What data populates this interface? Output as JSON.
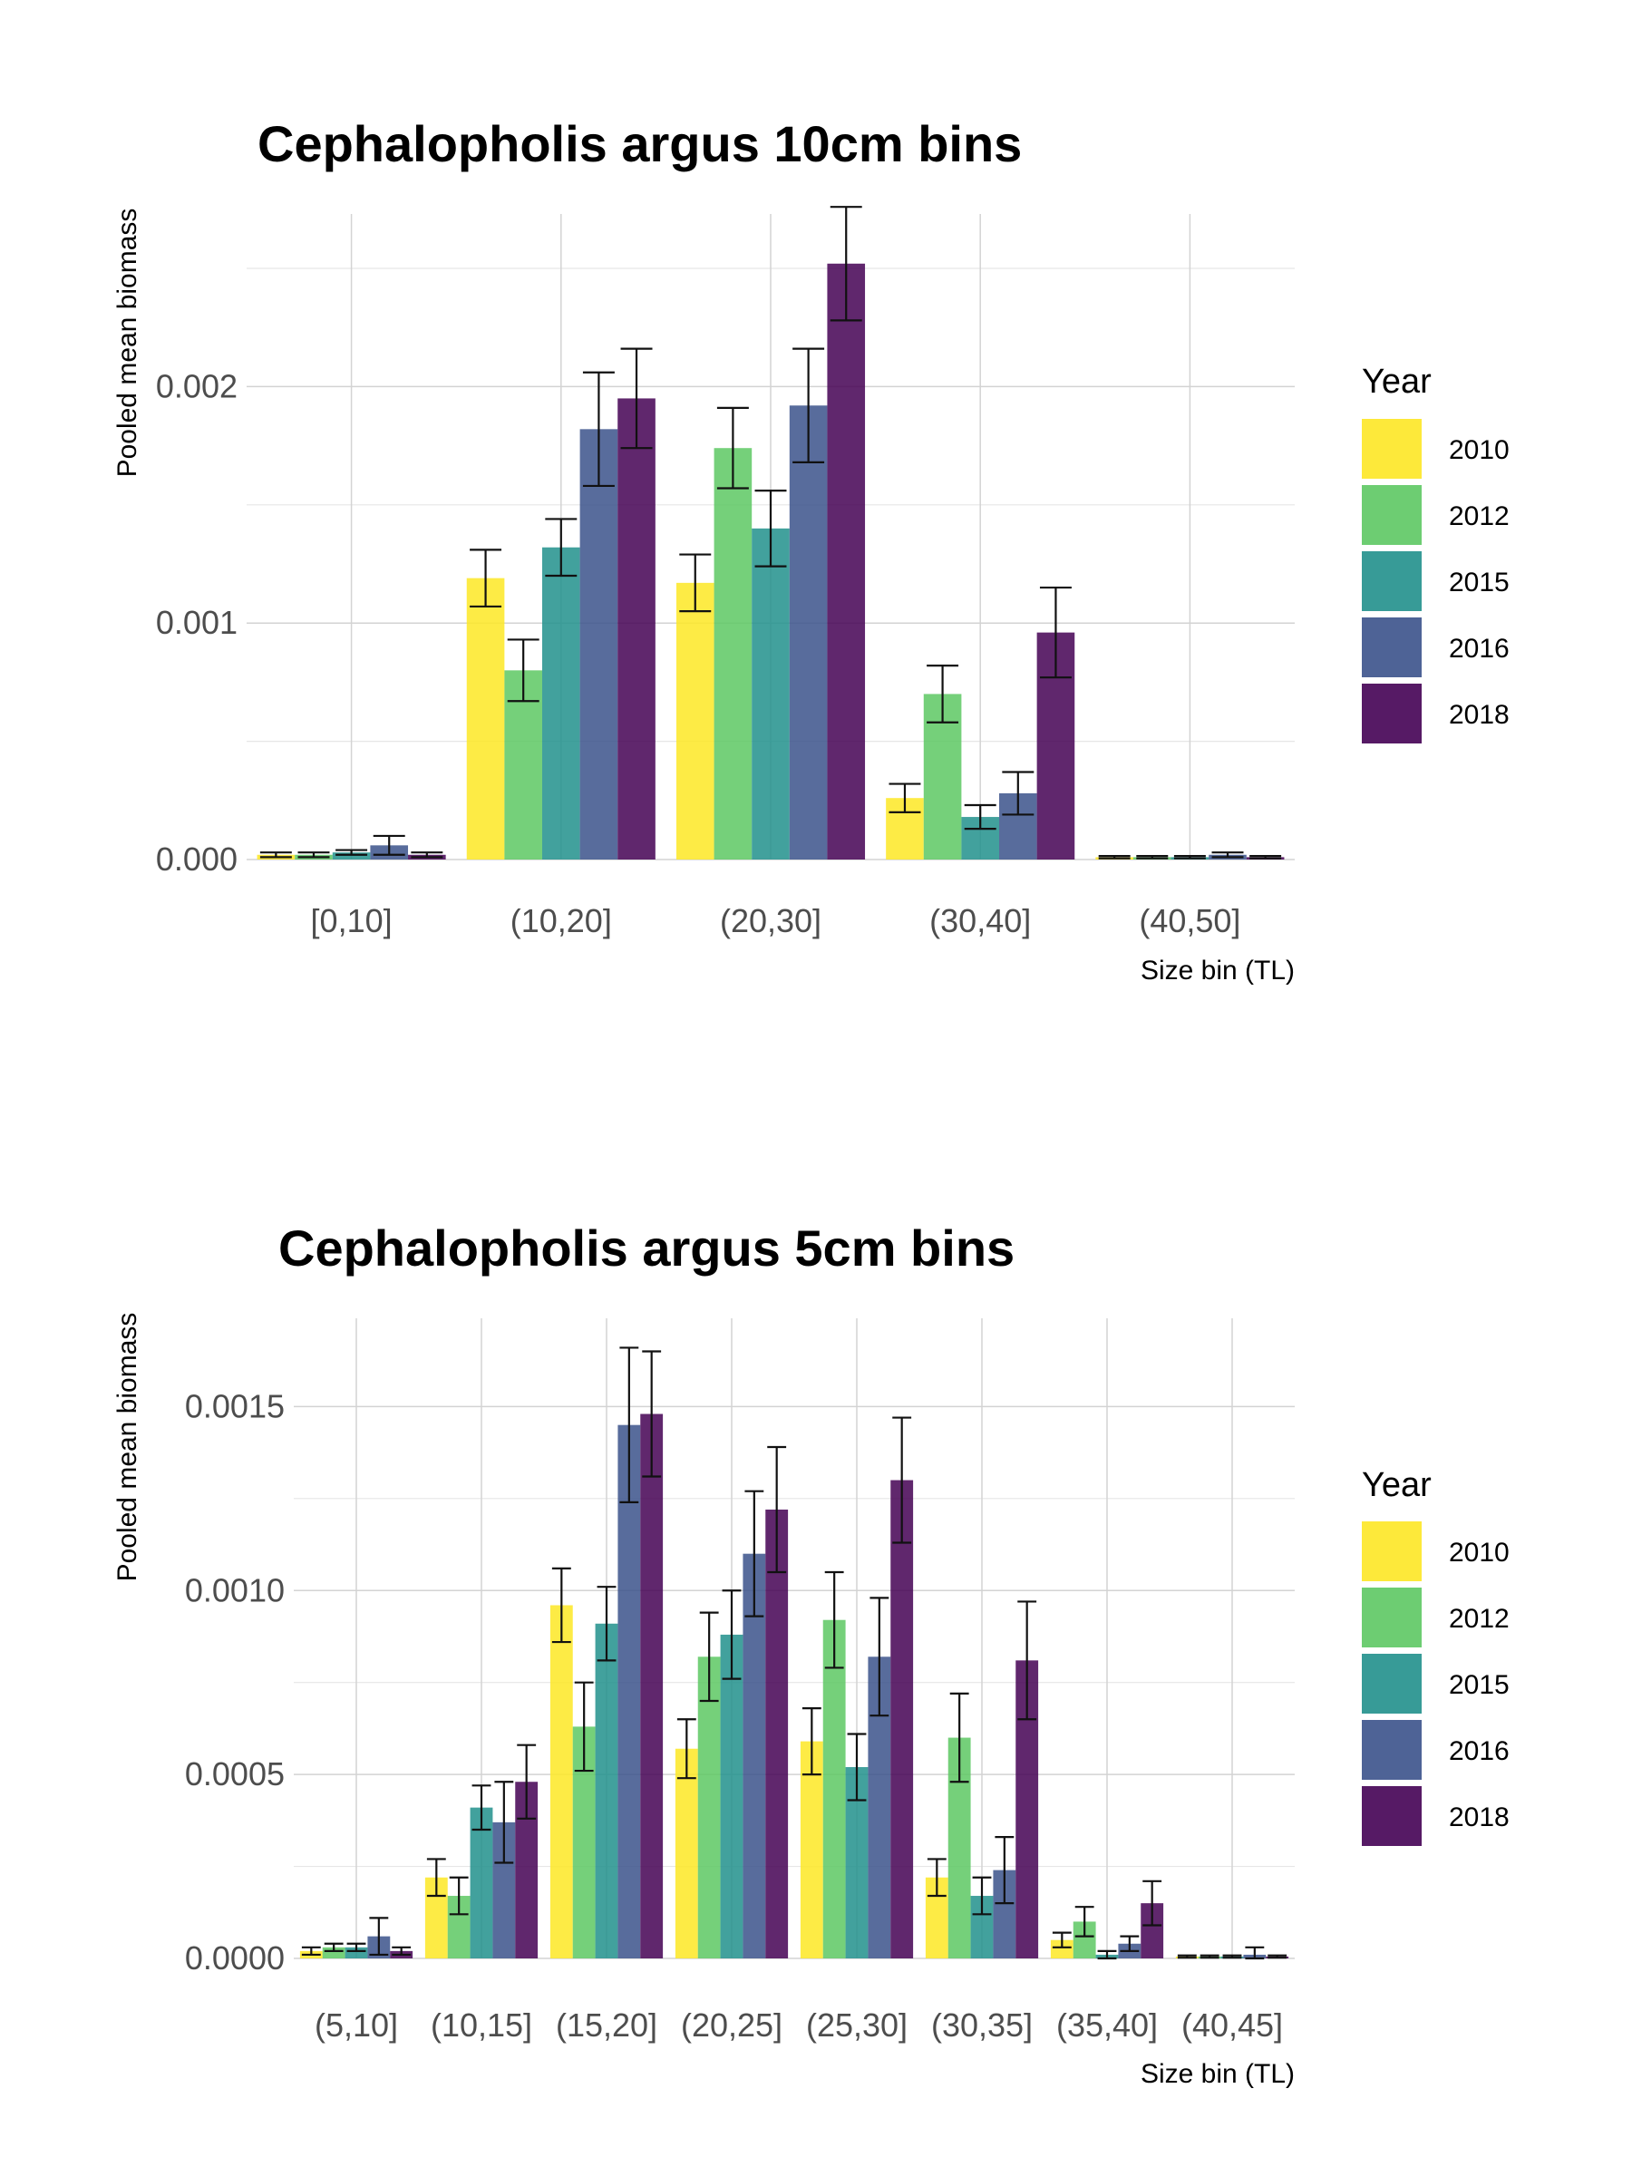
{
  "chart_data": [
    {
      "type": "bar",
      "title": "Cephalopholis argus 10cm bins",
      "xlabel": "Size bin (TL)",
      "ylabel": "Pooled mean biomass",
      "ylim": [
        0,
        0.00273
      ],
      "yticks": [
        "0.000",
        "0.001",
        "0.002"
      ],
      "ytick_values": [
        0,
        0.001,
        0.002
      ],
      "grid": true,
      "legend": {
        "title": "Year",
        "position": "right"
      },
      "categories": [
        "[0,10]",
        "(10,20]",
        "(20,30]",
        "(30,40]",
        "(40,50]"
      ],
      "series": [
        {
          "name": "2010",
          "color": "#FDE725",
          "values": [
            2e-05,
            0.00119,
            0.00117,
            0.00026,
            1e-05
          ],
          "error": [
            1e-05,
            0.00012,
            0.00012,
            6e-05,
            5e-06
          ]
        },
        {
          "name": "2012",
          "color": "#5DC863",
          "values": [
            2e-05,
            0.0008,
            0.00174,
            0.0007,
            1e-05
          ],
          "error": [
            1e-05,
            0.00013,
            0.00017,
            0.00012,
            5e-06
          ]
        },
        {
          "name": "2015",
          "color": "#21908C",
          "values": [
            3e-05,
            0.00132,
            0.0014,
            0.00018,
            1e-05
          ],
          "error": [
            1e-05,
            0.00012,
            0.00016,
            5e-05,
            5e-06
          ]
        },
        {
          "name": "2016",
          "color": "#3B528B",
          "values": [
            6e-05,
            0.00182,
            0.00192,
            0.00028,
            2e-05
          ],
          "error": [
            4e-05,
            0.00024,
            0.00024,
            9e-05,
            1e-05
          ]
        },
        {
          "name": "2018",
          "color": "#440154",
          "values": [
            2e-05,
            0.00195,
            0.00252,
            0.00096,
            1e-05
          ],
          "error": [
            1e-05,
            0.00021,
            0.00024,
            0.00019,
            5e-06
          ]
        }
      ]
    },
    {
      "type": "bar",
      "title": "Cephalopholis argus 5cm bins",
      "xlabel": "Size bin (TL)",
      "ylabel": "Pooled mean biomass",
      "ylim": [
        0,
        0.00174
      ],
      "yticks": [
        "0.0000",
        "0.0005",
        "0.0010",
        "0.0015"
      ],
      "ytick_values": [
        0,
        0.0005,
        0.001,
        0.0015
      ],
      "grid": true,
      "legend": {
        "title": "Year",
        "position": "right"
      },
      "categories": [
        "(5,10]",
        "(10,15]",
        "(15,20]",
        "(20,25]",
        "(25,30]",
        "(30,35]",
        "(35,40]",
        "(40,45]"
      ],
      "series": [
        {
          "name": "2010",
          "color": "#FDE725",
          "values": [
            2e-05,
            0.00022,
            0.00096,
            0.00057,
            0.00059,
            0.00022,
            5e-05,
            5e-06
          ],
          "error": [
            1e-05,
            5e-05,
            0.0001,
            8e-05,
            9e-05,
            5e-05,
            2e-05,
            3e-06
          ]
        },
        {
          "name": "2012",
          "color": "#5DC863",
          "values": [
            3e-05,
            0.00017,
            0.00063,
            0.00082,
            0.00092,
            0.0006,
            0.0001,
            5e-06
          ],
          "error": [
            1e-05,
            5e-05,
            0.00012,
            0.00012,
            0.00013,
            0.00012,
            4e-05,
            3e-06
          ]
        },
        {
          "name": "2015",
          "color": "#21908C",
          "values": [
            3e-05,
            0.00041,
            0.00091,
            0.00088,
            0.00052,
            0.00017,
            1e-05,
            5e-06
          ],
          "error": [
            1e-05,
            6e-05,
            0.0001,
            0.00012,
            9e-05,
            5e-05,
            1e-05,
            3e-06
          ]
        },
        {
          "name": "2016",
          "color": "#3B528B",
          "values": [
            6e-05,
            0.00037,
            0.00145,
            0.0011,
            0.00082,
            0.00024,
            4e-05,
            1e-05
          ],
          "error": [
            5e-05,
            0.00011,
            0.00021,
            0.00017,
            0.00016,
            9e-05,
            2e-05,
            2e-05
          ]
        },
        {
          "name": "2018",
          "color": "#440154",
          "values": [
            2e-05,
            0.00048,
            0.00148,
            0.00122,
            0.0013,
            0.00081,
            0.00015,
            5e-06
          ],
          "error": [
            1e-05,
            0.0001,
            0.00017,
            0.00017,
            0.00017,
            0.00016,
            6e-05,
            3e-06
          ]
        }
      ]
    }
  ]
}
